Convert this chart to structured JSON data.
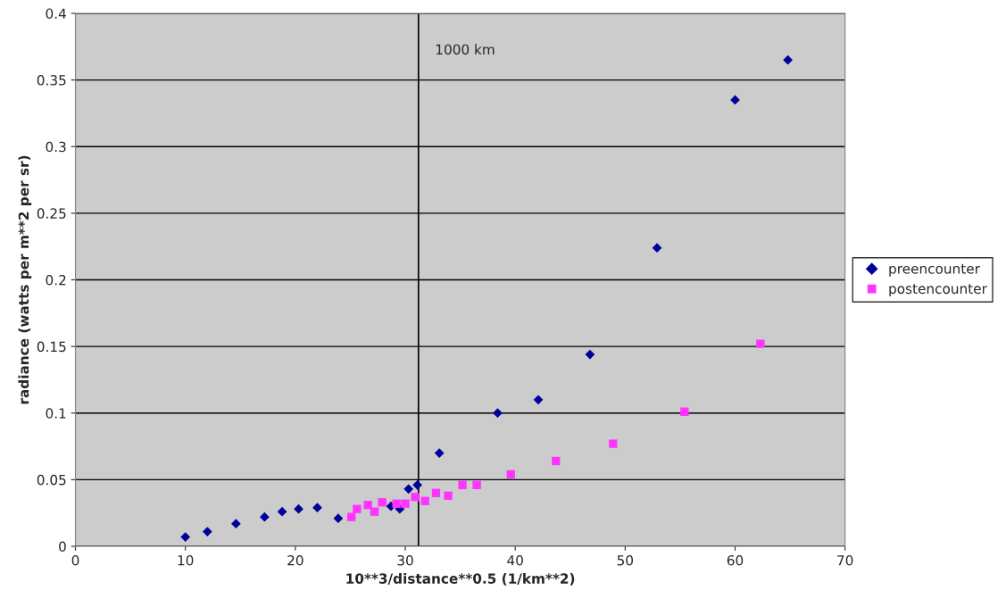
{
  "chart_data": {
    "type": "scatter",
    "xlabel": "10**3/distance**0.5 (1/km**2)",
    "ylabel": "radiance (watts per m**2 per sr)",
    "xlim": [
      0,
      70
    ],
    "xticks": [
      0,
      10,
      20,
      30,
      40,
      50,
      60,
      70
    ],
    "ylim": [
      0,
      0.4
    ],
    "yticks": [
      0,
      0.05,
      0.1,
      0.15,
      0.2,
      0.25,
      0.3,
      0.35,
      0.4
    ],
    "grid": "y",
    "legend": "right",
    "ref_lines": [
      {
        "axis": "x",
        "value": 31.2,
        "label": "1000 km"
      }
    ],
    "series": [
      {
        "name": "preencounter",
        "color": "#000099",
        "marker": "diamond",
        "x": [
          10.0,
          12.0,
          14.6,
          17.2,
          18.8,
          20.3,
          22.0,
          23.9,
          28.7,
          29.5,
          30.3,
          31.1,
          33.1,
          38.4,
          42.1,
          46.8,
          52.9,
          60.0,
          64.8
        ],
        "values": [
          0.007,
          0.011,
          0.017,
          0.022,
          0.026,
          0.028,
          0.029,
          0.021,
          0.03,
          0.028,
          0.043,
          0.046,
          0.07,
          0.1,
          0.11,
          0.144,
          0.224,
          0.335,
          0.365
        ]
      },
      {
        "name": "postencounter",
        "color": "#ff33ff",
        "marker": "square",
        "x": [
          25.1,
          25.6,
          26.6,
          27.2,
          27.9,
          29.2,
          30.0,
          30.9,
          31.8,
          32.8,
          33.9,
          35.2,
          36.5,
          39.6,
          43.7,
          48.9,
          55.4,
          62.3
        ],
        "values": [
          0.022,
          0.028,
          0.031,
          0.026,
          0.033,
          0.032,
          0.032,
          0.037,
          0.034,
          0.04,
          0.038,
          0.046,
          0.046,
          0.054,
          0.064,
          0.077,
          0.101,
          0.152
        ]
      }
    ]
  }
}
